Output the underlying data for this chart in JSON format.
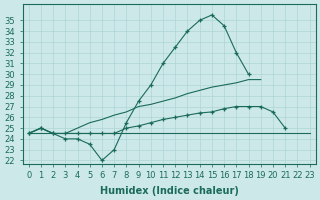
{
  "xlabel": "Humidex (Indice chaleur)",
  "x": [
    0,
    1,
    2,
    3,
    4,
    5,
    6,
    7,
    8,
    9,
    10,
    11,
    12,
    13,
    14,
    15,
    16,
    17,
    18,
    19,
    20,
    21,
    22,
    23
  ],
  "curve1_y": [
    24.5,
    25.0,
    24.5,
    24.0,
    24.0,
    23.5,
    22.0,
    23.0,
    25.5,
    27.5,
    29.0,
    31.0,
    32.5,
    34.0,
    35.0,
    35.5,
    34.5,
    32.0,
    30.0,
    null,
    null,
    null,
    null,
    null
  ],
  "curve2_y": [
    24.5,
    24.5,
    24.5,
    24.5,
    24.5,
    24.5,
    24.5,
    24.5,
    24.5,
    24.5,
    24.5,
    24.5,
    24.5,
    24.5,
    24.5,
    24.5,
    24.5,
    24.5,
    24.5,
    24.5,
    24.5,
    24.5,
    24.5,
    24.5
  ],
  "curve3_y": [
    24.5,
    25.0,
    24.5,
    24.5,
    25.0,
    25.5,
    25.8,
    26.2,
    26.5,
    27.0,
    27.2,
    27.5,
    27.8,
    28.2,
    28.5,
    28.8,
    29.0,
    29.2,
    29.5,
    29.5,
    null,
    null,
    null,
    null
  ],
  "curve4_y": [
    24.5,
    25.0,
    24.5,
    24.5,
    24.5,
    24.5,
    24.5,
    24.5,
    25.0,
    25.2,
    25.5,
    25.8,
    26.0,
    26.2,
    26.4,
    26.5,
    26.8,
    27.0,
    27.0,
    27.0,
    26.5,
    25.0,
    null,
    null
  ],
  "ylim": [
    22,
    36
  ],
  "yticks": [
    22,
    23,
    24,
    25,
    26,
    27,
    28,
    29,
    30,
    31,
    32,
    33,
    34,
    35
  ],
  "color": "#1a6b5a",
  "bg_color": "#cce8e8",
  "grid_color": "#aed4d4",
  "label_fontsize": 7,
  "tick_fontsize": 6
}
